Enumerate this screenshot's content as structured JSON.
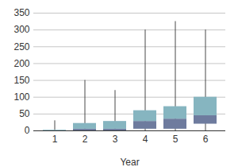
{
  "chart_data": {
    "type": "box",
    "x_label": "Year",
    "categories": [
      1,
      2,
      3,
      4,
      5,
      6
    ],
    "min": [
      0,
      0,
      0,
      0,
      0,
      0
    ],
    "q1": [
      0,
      0,
      0,
      5,
      5,
      20
    ],
    "median": [
      0,
      5,
      5,
      28,
      35,
      45
    ],
    "q3": [
      2,
      22,
      28,
      60,
      72,
      100
    ],
    "max": [
      30,
      150,
      120,
      300,
      325,
      300
    ],
    "colors": [
      "#6e7b9e",
      "#86b5c0"
    ],
    "ylim": [
      0,
      350
    ],
    "yticks": [
      0,
      50,
      100,
      150,
      200,
      250,
      300,
      350
    ],
    "grid": true
  }
}
